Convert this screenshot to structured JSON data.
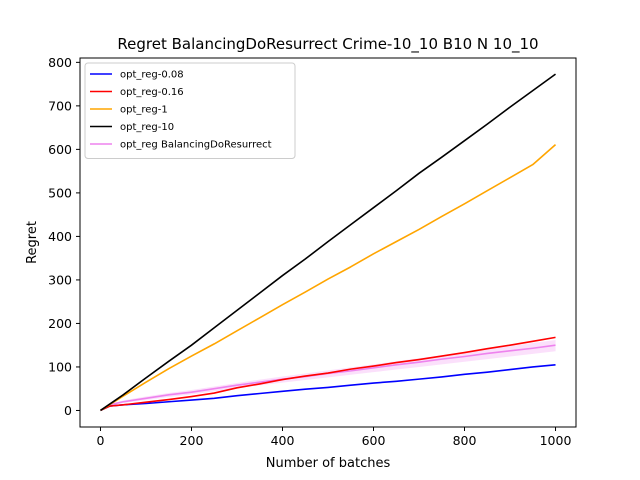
{
  "chart_data": {
    "type": "line",
    "title": "Regret BalancingDoResurrect Crime-10_10 B10 N 10_10",
    "xlabel": "Number of batches",
    "ylabel": "Regret",
    "xlim": [
      -45,
      1045
    ],
    "ylim": [
      -38,
      810
    ],
    "xticks": [
      0,
      200,
      400,
      600,
      800,
      1000
    ],
    "yticks": [
      0,
      100,
      200,
      300,
      400,
      500,
      600,
      700,
      800
    ],
    "grid": false,
    "legend_position": "upper-left",
    "series": [
      {
        "name": "opt_reg-0.08",
        "color": "#0000ff",
        "x": [
          0,
          20,
          50,
          100,
          150,
          200,
          250,
          300,
          350,
          400,
          450,
          500,
          550,
          600,
          650,
          700,
          750,
          800,
          850,
          900,
          950,
          1000
        ],
        "y": [
          0,
          10,
          13,
          16,
          20,
          24,
          28,
          34,
          39,
          44,
          49,
          53,
          58,
          63,
          67,
          72,
          77,
          83,
          88,
          94,
          100,
          105
        ]
      },
      {
        "name": "opt_reg-0.16",
        "color": "#ff0000",
        "x": [
          0,
          20,
          50,
          100,
          150,
          200,
          250,
          300,
          350,
          400,
          450,
          500,
          550,
          600,
          650,
          700,
          750,
          800,
          850,
          900,
          950,
          1000
        ],
        "y": [
          0,
          10,
          13,
          19,
          25,
          32,
          40,
          52,
          61,
          71,
          79,
          86,
          95,
          102,
          110,
          117,
          125,
          133,
          142,
          150,
          159,
          168
        ]
      },
      {
        "name": "opt_reg-1",
        "color": "#ffa500",
        "x": [
          0,
          50,
          100,
          150,
          200,
          250,
          300,
          350,
          400,
          450,
          500,
          550,
          600,
          650,
          700,
          750,
          800,
          850,
          900,
          950,
          1000
        ],
        "y": [
          0,
          33,
          65,
          96,
          125,
          153,
          183,
          213,
          243,
          272,
          302,
          330,
          360,
          388,
          416,
          446,
          475,
          505,
          535,
          565,
          611
        ]
      },
      {
        "name": "opt_reg-10",
        "color": "#000000",
        "x": [
          0,
          50,
          100,
          150,
          200,
          250,
          300,
          350,
          400,
          450,
          500,
          550,
          600,
          650,
          700,
          750,
          800,
          850,
          900,
          950,
          1000
        ],
        "y": [
          0,
          36,
          75,
          113,
          150,
          190,
          230,
          270,
          310,
          348,
          388,
          427,
          466,
          505,
          545,
          582,
          620,
          658,
          697,
          735,
          773
        ]
      },
      {
        "name": "opt_reg BalancingDoResurrect",
        "color": "#ee82ee",
        "x": [
          0,
          20,
          50,
          100,
          150,
          200,
          250,
          300,
          350,
          400,
          450,
          500,
          550,
          600,
          650,
          700,
          750,
          800,
          850,
          900,
          950,
          1000
        ],
        "y": [
          0,
          13,
          20,
          28,
          36,
          42,
          50,
          58,
          65,
          72,
          78,
          85,
          91,
          98,
          105,
          111,
          118,
          124,
          131,
          137,
          143,
          150
        ],
        "band_lower": [
          0,
          11,
          17,
          24,
          31,
          37,
          44,
          51,
          58,
          64,
          70,
          76,
          82,
          88,
          94,
          100,
          106,
          112,
          118,
          124,
          130,
          136
        ],
        "band_upper": [
          0,
          15,
          23,
          32,
          40,
          47,
          55,
          63,
          71,
          78,
          85,
          92,
          99,
          106,
          113,
          120,
          127,
          134,
          141,
          148,
          155,
          162
        ]
      }
    ]
  }
}
